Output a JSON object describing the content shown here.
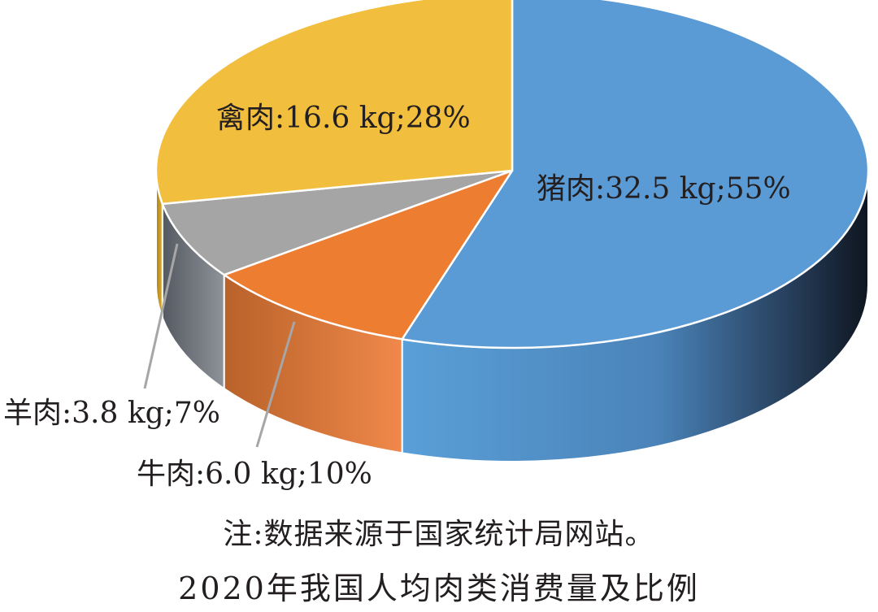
{
  "chart_data": {
    "type": "pie",
    "style": "3d",
    "slices": [
      {
        "name": "猪肉",
        "amount": "32.5 kg",
        "percent": 55,
        "label": "猪肉:32.5 kg;55%",
        "color": "#5b9bd5"
      },
      {
        "name": "牛肉",
        "amount": "6.0 kg",
        "percent": 10,
        "label": "牛肉:6.0 kg;10%",
        "color": "#ed7d31"
      },
      {
        "name": "羊肉",
        "amount": "3.8 kg",
        "percent": 7,
        "label": "羊肉:3.8 kg;7%",
        "color": "#a5a5a5"
      },
      {
        "name": "禽肉",
        "amount": "16.6 kg",
        "percent": 28,
        "label": "禽肉:16.6 kg;28%",
        "color": "#f2be3d"
      }
    ],
    "note": "注:数据来源于国家统计局网站。",
    "caption": "2020年我国人均肉类消费量及比例"
  }
}
